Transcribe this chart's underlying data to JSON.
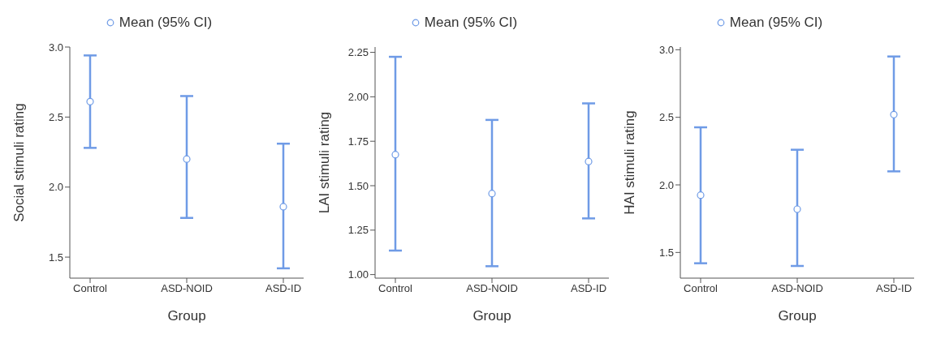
{
  "chart_data": [
    {
      "type": "scatter",
      "categories": [
        "Control",
        "ASD-NOID",
        "ASD-ID"
      ],
      "xlabel": "Group",
      "ylabel": "Social stimuli rating",
      "ylim": [
        1.35,
        3.0
      ],
      "yticks": [
        {
          "value": 1.5,
          "label": "1.5"
        },
        {
          "value": 2.0,
          "label": "2.0"
        },
        {
          "value": 2.5,
          "label": "2.5"
        },
        {
          "value": 3.0,
          "label": "3.0"
        }
      ],
      "legend": "top",
      "marker": "circle",
      "grid": false,
      "series": [
        {
          "name": "Mean (95% CI)",
          "color": "#6f9be6",
          "values": [
            2.61,
            2.2,
            1.86
          ],
          "errors": [
            [
              2.28,
              2.94
            ],
            [
              1.78,
              2.65
            ],
            [
              1.42,
              2.31
            ]
          ]
        }
      ]
    },
    {
      "type": "scatter",
      "categories": [
        "Control",
        "ASD-NOID",
        "ASD-ID"
      ],
      "xlabel": "Group",
      "ylabel": "LAI stimuli rating",
      "ylim": [
        0.98,
        2.28
      ],
      "yticks": [
        {
          "value": 1.0,
          "label": "1.00"
        },
        1.25,
        {
          "value": 1.5,
          "label": "1.50"
        },
        1.75,
        {
          "value": 2.0,
          "label": "2.00"
        },
        2.25
      ],
      "legend": "top",
      "marker": "circle",
      "grid": false,
      "series": [
        {
          "name": "Mean (95% CI)",
          "color": "#6f9be6",
          "values": [
            1.675,
            1.456,
            1.636
          ],
          "errors": [
            [
              1.135,
              2.225
            ],
            [
              1.047,
              1.87
            ],
            [
              1.316,
              1.963
            ]
          ]
        }
      ]
    },
    {
      "type": "scatter",
      "categories": [
        "Control",
        "ASD-NOID",
        "ASD-ID"
      ],
      "xlabel": "Group",
      "ylabel": "HAI stimuli rating",
      "ylim": [
        1.31,
        3.02
      ],
      "yticks": [
        {
          "value": 1.5,
          "label": "1.5"
        },
        {
          "value": 2.0,
          "label": "2.0"
        },
        {
          "value": 2.5,
          "label": "2.5"
        },
        {
          "value": 3.0,
          "label": "3.0"
        }
      ],
      "legend": "top",
      "marker": "circle",
      "grid": false,
      "series": [
        {
          "name": "Mean (95% CI)",
          "color": "#6f9be6",
          "values": [
            1.924,
            1.82,
            2.52
          ],
          "errors": [
            [
              1.42,
              2.426
            ],
            [
              1.4,
              2.26
            ],
            [
              2.1,
              2.95
            ]
          ]
        }
      ]
    }
  ]
}
